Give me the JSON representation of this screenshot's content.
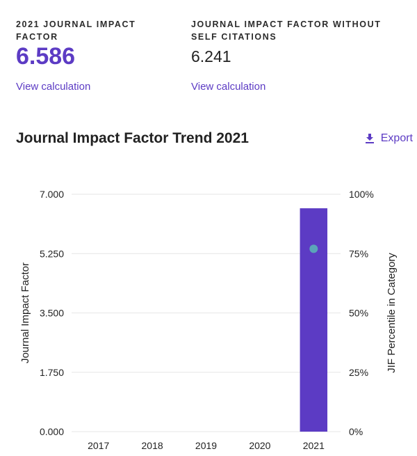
{
  "metrics": {
    "jif": {
      "label": "2021 JOURNAL IMPACT FACTOR",
      "value": "6.586",
      "link": "View calculation"
    },
    "jif_no_self": {
      "label": "JOURNAL IMPACT FACTOR WITHOUT SELF CITATIONS",
      "value": "6.241",
      "link": "View calculation"
    }
  },
  "trend": {
    "title": "Journal Impact Factor Trend 2021",
    "export_label": "Export"
  },
  "colors": {
    "accent": "#5c3bc4",
    "point": "#5ba4b9",
    "grid": "#e6e6e6"
  },
  "chart_data": {
    "type": "bar",
    "categories": [
      "2017",
      "2018",
      "2019",
      "2020",
      "2021"
    ],
    "series": [
      {
        "name": "Journal Impact Factor",
        "axis": "left",
        "type": "bar",
        "values": [
          null,
          null,
          null,
          null,
          6.586
        ]
      },
      {
        "name": "JIF Percentile in Category",
        "axis": "right",
        "type": "scatter",
        "values": [
          null,
          null,
          null,
          null,
          77
        ]
      }
    ],
    "ylabel": "Journal Impact Factor",
    "y2label": "JIF Percentile in Category",
    "ylim": [
      0,
      7
    ],
    "y2lim": [
      0,
      100
    ],
    "yticks": [
      "0.000",
      "1.750",
      "3.500",
      "5.250",
      "7.000"
    ],
    "y2ticks": [
      "0%",
      "25%",
      "50%",
      "75%",
      "100%"
    ],
    "grid": true
  }
}
